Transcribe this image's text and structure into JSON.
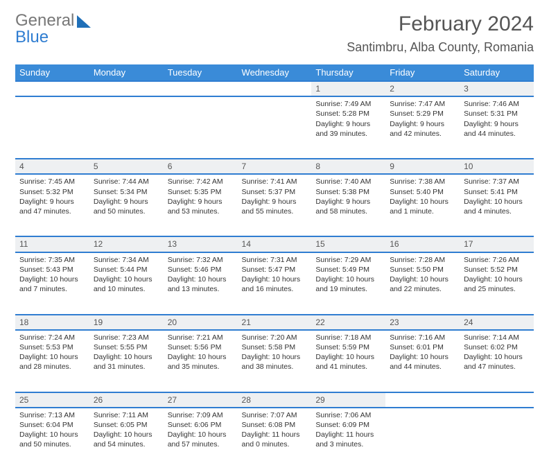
{
  "brand": {
    "word1": "General",
    "word2": "Blue"
  },
  "title": {
    "month": "February 2024",
    "location": "Santimbru, Alba County, Romania"
  },
  "colors": {
    "header_bg": "#3a8bd8",
    "header_text": "#ffffff",
    "row_border": "#2f7dd1",
    "daynum_bg": "#eef0f2",
    "text": "#333333",
    "title_text": "#555555",
    "brand_gray": "#777777",
    "brand_blue": "#2f7dd1",
    "page_bg": "#ffffff"
  },
  "weekdays": [
    "Sunday",
    "Monday",
    "Tuesday",
    "Wednesday",
    "Thursday",
    "Friday",
    "Saturday"
  ],
  "weeks": [
    {
      "nums": [
        "",
        "",
        "",
        "",
        "1",
        "2",
        "3"
      ],
      "cells": [
        "",
        "",
        "",
        "",
        "Sunrise: 7:49 AM\nSunset: 5:28 PM\nDaylight: 9 hours and 39 minutes.",
        "Sunrise: 7:47 AM\nSunset: 5:29 PM\nDaylight: 9 hours and 42 minutes.",
        "Sunrise: 7:46 AM\nSunset: 5:31 PM\nDaylight: 9 hours and 44 minutes."
      ]
    },
    {
      "nums": [
        "4",
        "5",
        "6",
        "7",
        "8",
        "9",
        "10"
      ],
      "cells": [
        "Sunrise: 7:45 AM\nSunset: 5:32 PM\nDaylight: 9 hours and 47 minutes.",
        "Sunrise: 7:44 AM\nSunset: 5:34 PM\nDaylight: 9 hours and 50 minutes.",
        "Sunrise: 7:42 AM\nSunset: 5:35 PM\nDaylight: 9 hours and 53 minutes.",
        "Sunrise: 7:41 AM\nSunset: 5:37 PM\nDaylight: 9 hours and 55 minutes.",
        "Sunrise: 7:40 AM\nSunset: 5:38 PM\nDaylight: 9 hours and 58 minutes.",
        "Sunrise: 7:38 AM\nSunset: 5:40 PM\nDaylight: 10 hours and 1 minute.",
        "Sunrise: 7:37 AM\nSunset: 5:41 PM\nDaylight: 10 hours and 4 minutes."
      ]
    },
    {
      "nums": [
        "11",
        "12",
        "13",
        "14",
        "15",
        "16",
        "17"
      ],
      "cells": [
        "Sunrise: 7:35 AM\nSunset: 5:43 PM\nDaylight: 10 hours and 7 minutes.",
        "Sunrise: 7:34 AM\nSunset: 5:44 PM\nDaylight: 10 hours and 10 minutes.",
        "Sunrise: 7:32 AM\nSunset: 5:46 PM\nDaylight: 10 hours and 13 minutes.",
        "Sunrise: 7:31 AM\nSunset: 5:47 PM\nDaylight: 10 hours and 16 minutes.",
        "Sunrise: 7:29 AM\nSunset: 5:49 PM\nDaylight: 10 hours and 19 minutes.",
        "Sunrise: 7:28 AM\nSunset: 5:50 PM\nDaylight: 10 hours and 22 minutes.",
        "Sunrise: 7:26 AM\nSunset: 5:52 PM\nDaylight: 10 hours and 25 minutes."
      ]
    },
    {
      "nums": [
        "18",
        "19",
        "20",
        "21",
        "22",
        "23",
        "24"
      ],
      "cells": [
        "Sunrise: 7:24 AM\nSunset: 5:53 PM\nDaylight: 10 hours and 28 minutes.",
        "Sunrise: 7:23 AM\nSunset: 5:55 PM\nDaylight: 10 hours and 31 minutes.",
        "Sunrise: 7:21 AM\nSunset: 5:56 PM\nDaylight: 10 hours and 35 minutes.",
        "Sunrise: 7:20 AM\nSunset: 5:58 PM\nDaylight: 10 hours and 38 minutes.",
        "Sunrise: 7:18 AM\nSunset: 5:59 PM\nDaylight: 10 hours and 41 minutes.",
        "Sunrise: 7:16 AM\nSunset: 6:01 PM\nDaylight: 10 hours and 44 minutes.",
        "Sunrise: 7:14 AM\nSunset: 6:02 PM\nDaylight: 10 hours and 47 minutes."
      ]
    },
    {
      "nums": [
        "25",
        "26",
        "27",
        "28",
        "29",
        "",
        ""
      ],
      "cells": [
        "Sunrise: 7:13 AM\nSunset: 6:04 PM\nDaylight: 10 hours and 50 minutes.",
        "Sunrise: 7:11 AM\nSunset: 6:05 PM\nDaylight: 10 hours and 54 minutes.",
        "Sunrise: 7:09 AM\nSunset: 6:06 PM\nDaylight: 10 hours and 57 minutes.",
        "Sunrise: 7:07 AM\nSunset: 6:08 PM\nDaylight: 11 hours and 0 minutes.",
        "Sunrise: 7:06 AM\nSunset: 6:09 PM\nDaylight: 11 hours and 3 minutes.",
        "",
        ""
      ]
    }
  ]
}
